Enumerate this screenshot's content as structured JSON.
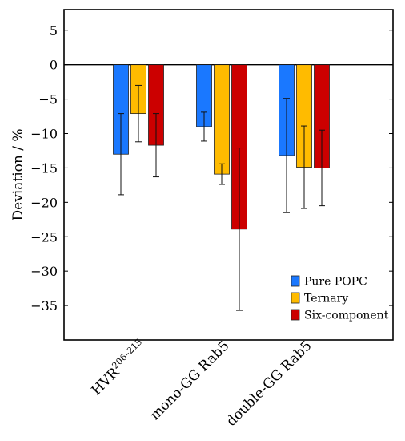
{
  "chart_data": {
    "type": "bar",
    "title": "",
    "xlabel": "",
    "ylabel": "Deviation / %",
    "ylim": [
      -40,
      8
    ],
    "yticks": [
      5,
      0,
      -5,
      -10,
      -15,
      -20,
      -25,
      -30,
      -35
    ],
    "ytick_labels": [
      "5",
      "0",
      "−5",
      "−10",
      "−15",
      "−20",
      "−25",
      "−30",
      "−35"
    ],
    "grid": false,
    "zero_line": true,
    "legend_position": "bottom-right",
    "categories": [
      "HVR",
      "mono-GG Rab5",
      "double-GG Rab5"
    ],
    "category_superscripts": [
      "206–215",
      "",
      ""
    ],
    "series": [
      {
        "name": "Pure POPC",
        "color": "#1a78ff",
        "values": [
          -13.0,
          -9.0,
          -13.2
        ],
        "err": [
          5.9,
          2.1,
          8.3
        ]
      },
      {
        "name": "Ternary",
        "color": "#ffbb00",
        "values": [
          -7.1,
          -15.9,
          -14.9
        ],
        "err": [
          4.1,
          1.5,
          6.0
        ]
      },
      {
        "name": "Six-component",
        "color": "#cc0000",
        "values": [
          -11.7,
          -23.9,
          -15.0
        ],
        "err": [
          4.6,
          11.8,
          5.5
        ]
      }
    ]
  }
}
